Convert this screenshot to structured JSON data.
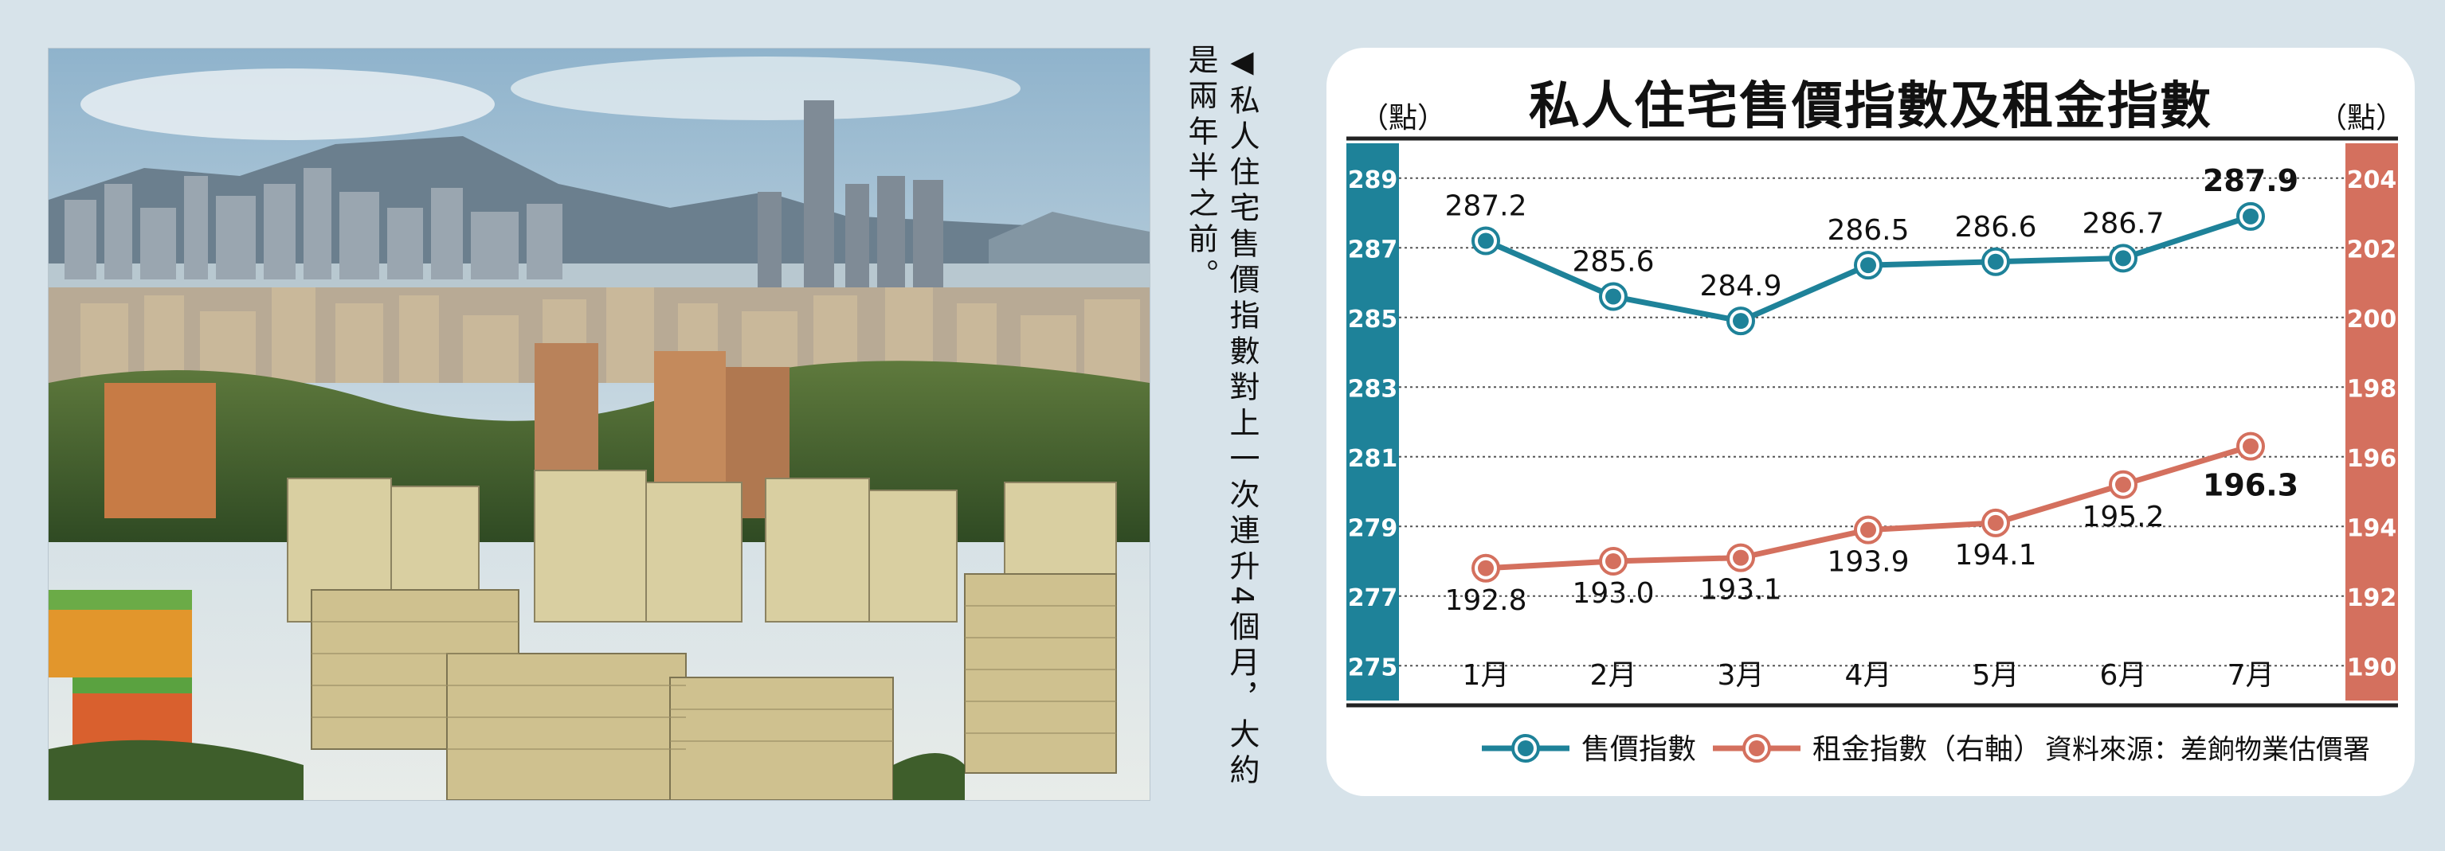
{
  "caption": "◀私人住宅售價指數對上一次連升4個月，大約是兩年半之前。",
  "chart_data": {
    "type": "line",
    "title": "私人住宅售價指數及租金指數",
    "left_axis_unit": "（點）",
    "right_axis_unit": "（點）",
    "categories": [
      "1月",
      "2月",
      "3月",
      "4月",
      "5月",
      "6月",
      "7月"
    ],
    "left_ticks": [
      289,
      287,
      285,
      283,
      281,
      279,
      277,
      275
    ],
    "right_ticks": [
      204,
      202,
      200,
      198,
      196,
      194,
      192,
      190
    ],
    "left_ylim": [
      274,
      290
    ],
    "right_ylim": [
      189,
      205
    ],
    "series": [
      {
        "name": "售價指數",
        "axis": "left",
        "color": "#1e8299",
        "values": [
          287.2,
          285.6,
          284.9,
          286.5,
          286.6,
          286.7,
          287.9
        ],
        "labels": [
          "287.2",
          "285.6",
          "284.9",
          "286.5",
          "286.6",
          "286.7",
          "287.9"
        ]
      },
      {
        "name": "租金指數（右軸）",
        "axis": "right",
        "color": "#d4705e",
        "values": [
          192.8,
          193.0,
          193.1,
          193.9,
          194.1,
          195.2,
          196.3
        ],
        "labels": [
          "192.8",
          "193.0",
          "193.1",
          "193.9",
          "194.1",
          "195.2",
          "196.3"
        ]
      }
    ],
    "grid": true,
    "legend": "bottom",
    "source": "資料來源：差餉物業估價署",
    "colors": {
      "left_band": "#1e8299",
      "right_band": "#d4705e"
    }
  }
}
